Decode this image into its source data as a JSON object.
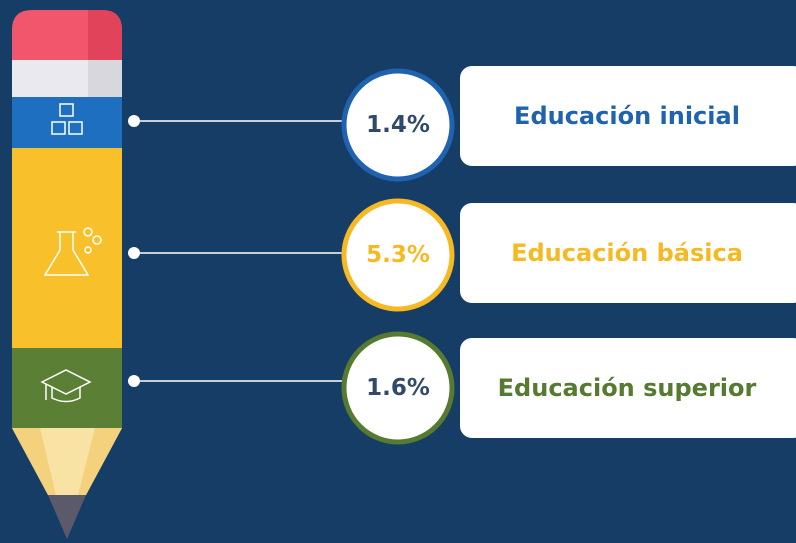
{
  "items": [
    {
      "value": "1.4%",
      "label": "Educación inicial",
      "color": "#1f63b0"
    },
    {
      "value": "5.3%",
      "label": "Educación básica",
      "color": "#f6b921"
    },
    {
      "value": "1.6%",
      "label": "Educación superior",
      "color": "#557a30"
    }
  ]
}
